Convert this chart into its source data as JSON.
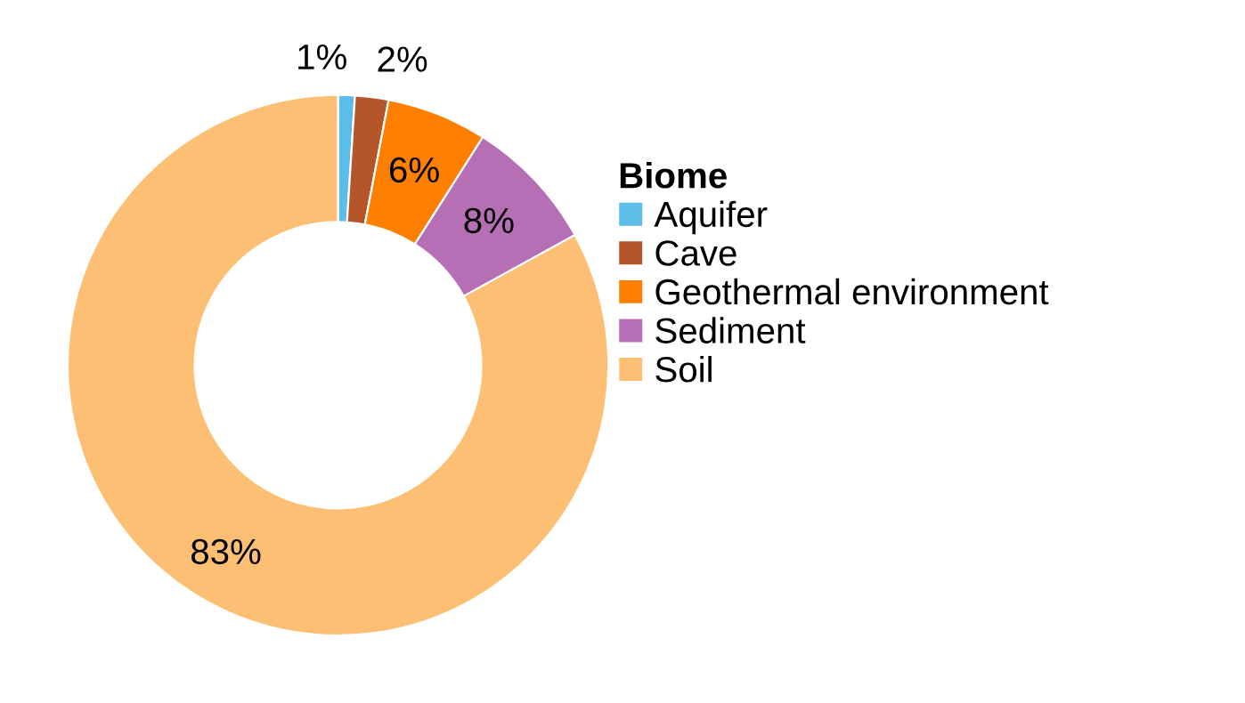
{
  "chart_data": {
    "type": "donut",
    "legend_title": "Biome",
    "legend": "right",
    "categories": [
      "Aquifer",
      "Cave",
      "Geothermal environment",
      "Sediment",
      "Soil"
    ],
    "values": [
      1,
      2,
      6,
      8,
      83
    ],
    "colors": [
      "#5bbde8",
      "#b5562a",
      "#ff7f00",
      "#b66eb4",
      "#fdbf73"
    ],
    "value_labels": [
      "1%",
      "2%",
      "6%",
      "8%",
      "83%"
    ]
  }
}
